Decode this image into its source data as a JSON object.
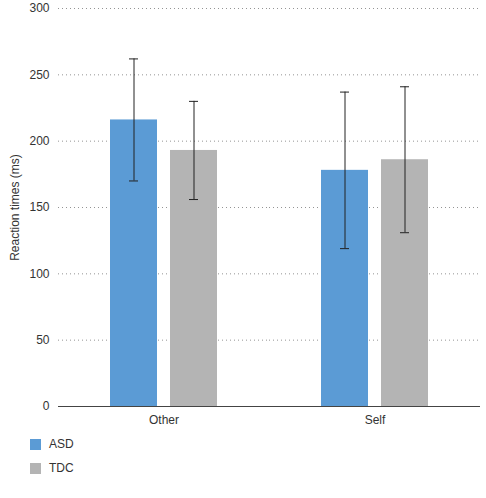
{
  "chart_data": {
    "type": "bar",
    "y_label": "Reaction times (ms)",
    "categories": [
      "Other",
      "Self"
    ],
    "series": [
      {
        "name": "ASD",
        "color": "#5b9bd5",
        "values": [
          216,
          178
        ],
        "errors": [
          46,
          59
        ]
      },
      {
        "name": "TDC",
        "color": "#b4b4b4",
        "values": [
          193,
          186
        ],
        "errors": [
          37,
          55
        ]
      }
    ],
    "ylim": [
      0,
      300
    ],
    "yticks": [
      0,
      50,
      100,
      150,
      200,
      250,
      300
    ],
    "grid": true,
    "legend": "bottom-left"
  }
}
